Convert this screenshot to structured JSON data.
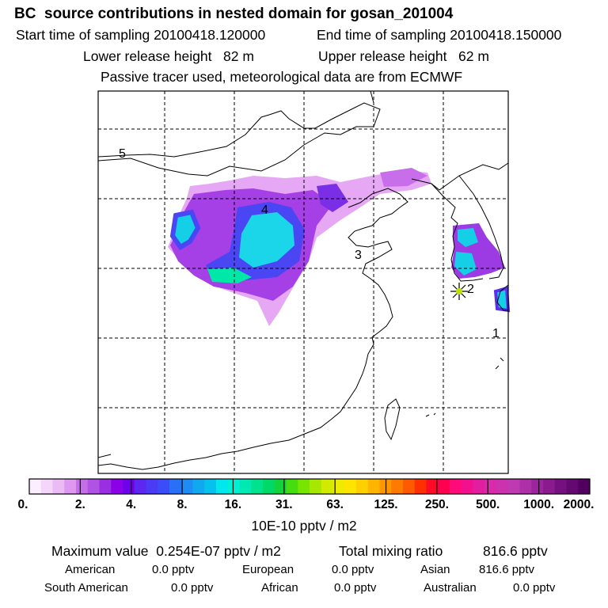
{
  "title": "BC  source contributions in nested domain for gosan_201004",
  "sampling": {
    "start_label": "Start time of sampling 20100418.120000",
    "end_label": "End time of sampling 20100418.150000"
  },
  "release": {
    "lower_label": "Lower release height   82 m",
    "upper_label": "Upper release height   62 m"
  },
  "note": "Passive tracer used, meteorological data are from ECMWF",
  "map": {
    "region_labels": [
      "5",
      "4",
      "3",
      "2",
      "1"
    ],
    "marker_icon": "star-marker-icon",
    "colors": {
      "frame": "#000000",
      "grid": "#000000",
      "coast": "#000000"
    }
  },
  "colorbar": {
    "tick_labels": [
      "0.",
      "2.",
      "4.",
      "8.",
      "16.",
      "31.",
      "63.",
      "125.",
      "250.",
      "500.",
      "1000.",
      "2000."
    ],
    "colors": [
      "#fbeefe",
      "#f4d6fb",
      "#ebbbf6",
      "#df98f1",
      "#c46ee8",
      "#b052e4",
      "#9a2fe2",
      "#8b00e7",
      "#6f00ec",
      "#5d27f0",
      "#4c3bf4",
      "#3a4df6",
      "#2a6ff7",
      "#1e8cf4",
      "#12a8f0",
      "#06c1ec",
      "#00e8ee",
      "#00f0d4",
      "#00e8b4",
      "#00e28e",
      "#00d868",
      "#14d23a",
      "#46dc10",
      "#78e400",
      "#a8e800",
      "#d2ea00",
      "#eeea00",
      "#ffe400",
      "#ffd000",
      "#ffb400",
      "#ff9600",
      "#ff7a00",
      "#ff5a00",
      "#ff3000",
      "#ff0a26",
      "#ff0050",
      "#ff0a78",
      "#f2108e",
      "#e21ea0",
      "#d82aaa",
      "#cc32ae",
      "#be3ab0",
      "#ae30a8",
      "#9c249c",
      "#8a1a8e",
      "#761080",
      "#640872",
      "#520060"
    ],
    "unit_label": "10E-10 pptv / m2"
  },
  "summary": {
    "max_label": "Maximum value  0.254E-07 pptv / m2",
    "total_label": "Total mixing ratio",
    "total_value": "816.6 pptv",
    "rows": [
      [
        [
          "American",
          "0.0 pptv"
        ],
        [
          "European",
          "0.0 pptv"
        ],
        [
          "Asian",
          "816.6 pptv"
        ]
      ],
      [
        [
          "South American",
          "0.0 pptv"
        ],
        [
          "African",
          "0.0 pptv"
        ],
        [
          "Australian",
          "0.0 pptv"
        ]
      ]
    ]
  }
}
